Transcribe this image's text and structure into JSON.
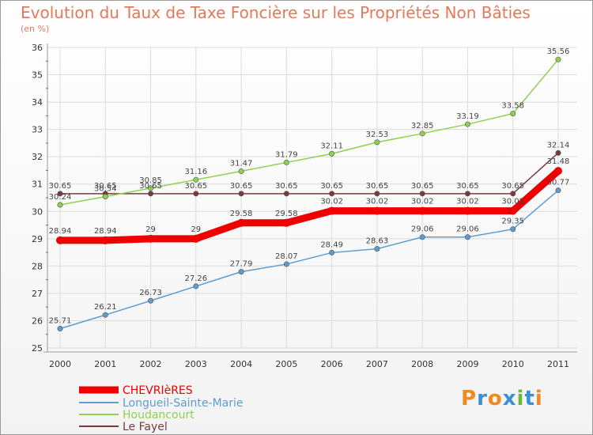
{
  "title": "Evolution du Taux de Taxe Foncière sur les Propriétés Non Bâties",
  "subtitle": "(en %)",
  "logo": {
    "letters": [
      "P",
      "r",
      "o",
      "x",
      "i",
      "t",
      "i"
    ],
    "colors": [
      "#f08a1e",
      "#3b8fd6",
      "#f08a1e",
      "#3b8fd6",
      "#6bb839",
      "#3b8fd6",
      "#f08a1e"
    ]
  },
  "chart_data": {
    "type": "line",
    "x": [
      "2000",
      "2001",
      "2002",
      "2003",
      "2004",
      "2005",
      "2006",
      "2007",
      "2008",
      "2009",
      "2010",
      "2011"
    ],
    "ylim": [
      25,
      36
    ],
    "yticks": [
      25,
      26,
      27,
      28,
      29,
      30,
      31,
      32,
      33,
      34,
      35,
      36
    ],
    "grid": true,
    "legend_placement": "bottom-left",
    "series": [
      {
        "name": "CHEVRIèRES",
        "color": "#ee0000",
        "values": [
          28.94,
          28.94,
          29,
          29,
          29.58,
          29.58,
          30.02,
          30.02,
          30.02,
          30.02,
          30.02,
          31.48
        ],
        "labels": [
          "28.94",
          "28.94",
          "29",
          "29",
          "29.58",
          "29.58",
          "30.02",
          "30.02",
          "30.02",
          "30.02",
          "30.02",
          "31.48"
        ]
      },
      {
        "name": "Longueil-Sainte-Marie",
        "color": "#5e9ccf",
        "values": [
          25.71,
          26.21,
          26.73,
          27.26,
          27.79,
          28.07,
          28.49,
          28.63,
          29.06,
          29.06,
          29.35,
          30.77
        ],
        "labels": [
          "25.71",
          "26.21",
          "26.73",
          "27.26",
          "27.79",
          "28.07",
          "28.49",
          "28.63",
          "29.06",
          "29.06",
          "29.35",
          "30.77"
        ]
      },
      {
        "name": "Houdancourt",
        "color": "#8fd14f",
        "values": [
          30.24,
          30.54,
          30.85,
          31.16,
          31.47,
          31.79,
          32.11,
          32.53,
          32.85,
          33.19,
          33.58,
          35.56
        ],
        "labels": [
          "30.24",
          "30.54",
          "30.85",
          "31.16",
          "31.47",
          "31.79",
          "32.11",
          "32.53",
          "32.85",
          "33.19",
          "33.58",
          "35.56"
        ]
      },
      {
        "name": "Le Fayel",
        "color": "#7a3b3b",
        "values": [
          30.65,
          30.65,
          30.65,
          30.65,
          30.65,
          30.65,
          30.65,
          30.65,
          30.65,
          30.65,
          30.65,
          32.14
        ],
        "labels": [
          "30.65",
          "30.65",
          "30.65",
          "30.65",
          "30.65",
          "30.65",
          "30.65",
          "30.65",
          "30.65",
          "30.65",
          "30.65",
          "32.14"
        ]
      }
    ]
  }
}
